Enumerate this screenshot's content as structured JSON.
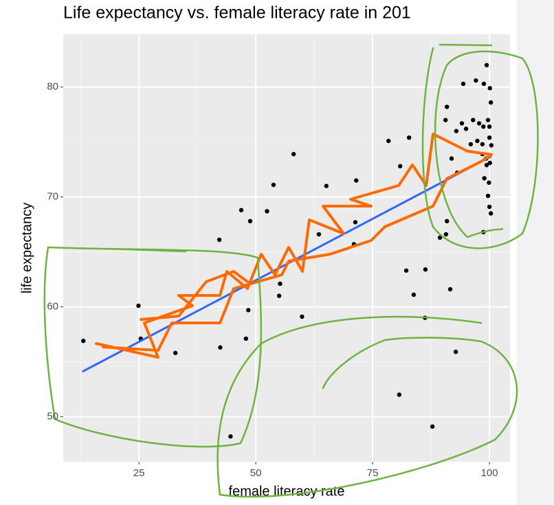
{
  "chart_data": {
    "type": "scatter",
    "title": "Life expectancy vs. female literacy rate in 201",
    "x_label": "female literacy rate",
    "y_label": "life expectancy",
    "x": [
      13.1,
      24.9,
      25.4,
      32.8,
      42.2,
      42.4,
      46.9,
      48.8,
      47.9,
      48.4,
      52.4,
      53.8,
      58.1,
      55.2,
      55.0,
      59.9,
      65.1,
      63.5,
      71.5,
      71.3,
      71.0,
      78.4,
      80.9,
      82.8,
      82.2,
      83.8,
      86.3,
      86.2,
      80.7,
      87.8,
      44.6,
      91.6,
      92.8,
      90.9,
      90.6,
      94.4,
      97.1,
      98.8,
      100.1,
      100.3,
      99.4,
      94.1,
      96.5,
      97.8,
      98.7,
      99.7,
      100.0,
      92.9,
      95.0,
      97.4,
      98.5,
      100.0,
      100.4,
      99.3,
      100.1,
      99.4,
      98.5,
      98.9,
      99.9,
      99.7,
      100.0,
      100.3,
      98.7,
      90.9,
      90.7,
      91.9,
      93.1,
      89.4,
      96.0
    ],
    "y": [
      56.9,
      60.1,
      57.1,
      55.8,
      66.1,
      56.3,
      68.8,
      67.8,
      57.1,
      59.7,
      68.7,
      71.1,
      73.9,
      62.1,
      61.0,
      59.1,
      71.0,
      66.6,
      71.5,
      67.7,
      65.7,
      75.1,
      72.8,
      75.4,
      63.3,
      61.1,
      63.4,
      59.0,
      52.0,
      49.1,
      48.2,
      61.6,
      55.9,
      78.2,
      77.0,
      80.3,
      80.6,
      80.3,
      79.9,
      78.6,
      82.0,
      76.7,
      77.0,
      76.7,
      76.4,
      77.0,
      76.4,
      76.0,
      76.2,
      75.1,
      74.8,
      75.4,
      74.7,
      73.5,
      73.1,
      72.9,
      73.9,
      71.7,
      71.3,
      70.1,
      69.1,
      68.5,
      66.8,
      67.8,
      66.6,
      73.5,
      72.2,
      66.3,
      74.8
    ],
    "color": "#000000",
    "fit_line": {
      "x": [
        12.9,
        100.4
      ],
      "y": [
        54.1,
        73.7
      ],
      "color": "#3366ff"
    },
    "xlim": [
      8.8,
      104.4
    ],
    "ylim": [
      45.9,
      84.8
    ],
    "xticks": [
      25,
      50,
      75,
      100
    ],
    "yticks": [
      50,
      60,
      70,
      80
    ],
    "xminor": [
      12.5,
      37.5,
      62.5,
      87.5
    ],
    "yminor": [
      55,
      65,
      75
    ],
    "grid": true
  }
}
